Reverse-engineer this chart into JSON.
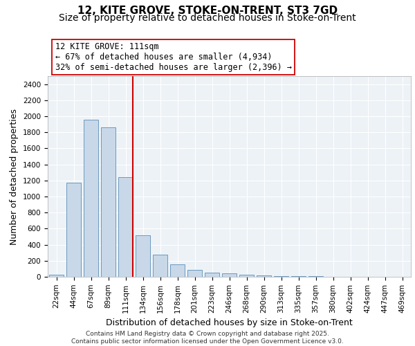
{
  "title_line1": "12, KITE GROVE, STOKE-ON-TRENT, ST3 7GD",
  "title_line2": "Size of property relative to detached houses in Stoke-on-Trent",
  "xlabel": "Distribution of detached houses by size in Stoke-on-Trent",
  "ylabel": "Number of detached properties",
  "categories": [
    "22sqm",
    "44sqm",
    "67sqm",
    "89sqm",
    "111sqm",
    "134sqm",
    "156sqm",
    "178sqm",
    "201sqm",
    "223sqm",
    "246sqm",
    "268sqm",
    "290sqm",
    "313sqm",
    "335sqm",
    "357sqm",
    "380sqm",
    "402sqm",
    "424sqm",
    "447sqm",
    "469sqm"
  ],
  "values": [
    30,
    1170,
    1960,
    1860,
    1240,
    520,
    280,
    155,
    90,
    50,
    40,
    30,
    15,
    5,
    5,
    5,
    3,
    3,
    2,
    2,
    2
  ],
  "bar_color": "#c8d8e8",
  "bar_edge_color": "#5b8db8",
  "marker_index": 4,
  "marker_label": "12 KITE GROVE: 111sqm",
  "annotation_line1": "← 67% of detached houses are smaller (4,934)",
  "annotation_line2": "32% of semi-detached houses are larger (2,396) →",
  "red_line_color": "#cc0000",
  "annotation_box_edge": "#cc0000",
  "ylim": [
    0,
    2500
  ],
  "yticks": [
    0,
    200,
    400,
    600,
    800,
    1000,
    1200,
    1400,
    1600,
    1800,
    2000,
    2200,
    2400
  ],
  "footnote1": "Contains HM Land Registry data © Crown copyright and database right 2025.",
  "footnote2": "Contains public sector information licensed under the Open Government Licence v3.0.",
  "bg_color": "#edf2f7",
  "grid_color": "#ffffff",
  "title_fontsize": 11,
  "subtitle_fontsize": 10,
  "axis_label_fontsize": 9,
  "tick_fontsize": 7.5,
  "annotation_fontsize": 8.5
}
